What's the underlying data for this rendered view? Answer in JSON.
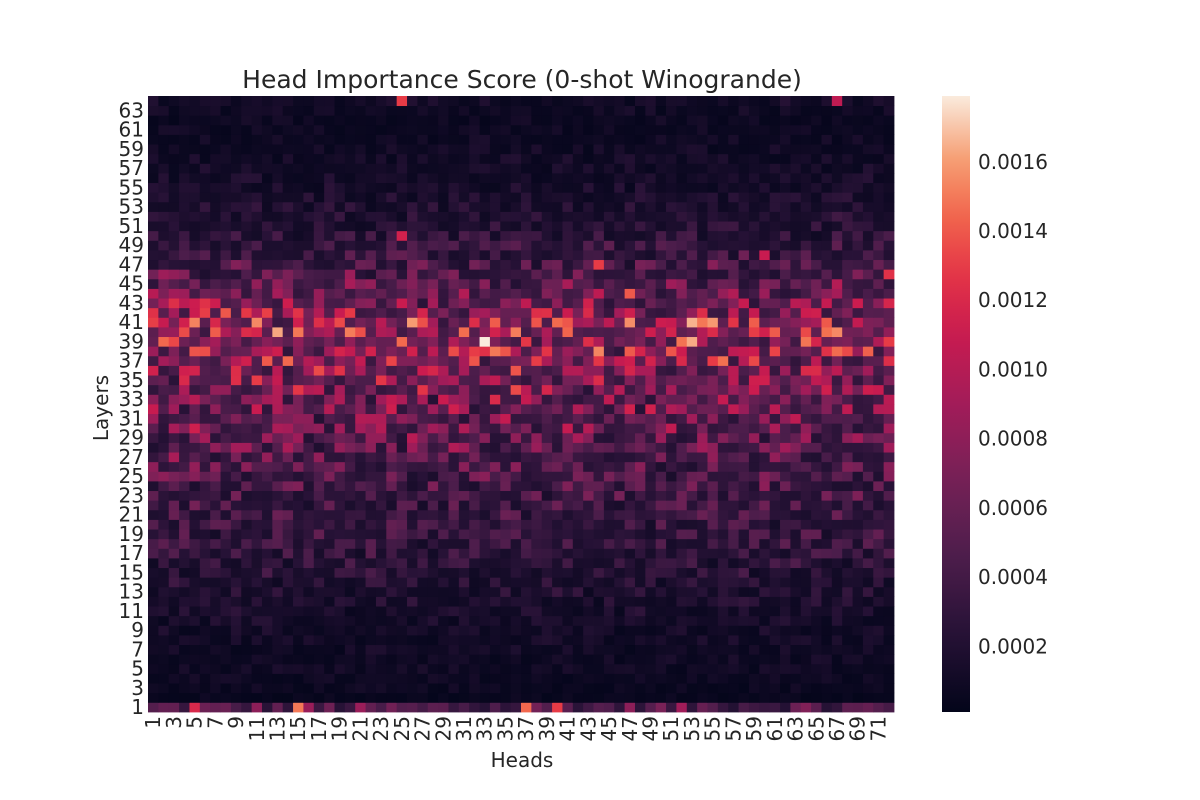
{
  "chart_data": {
    "type": "heatmap",
    "title": "Head Importance Score (0-shot Winogrande)",
    "xlabel": "Heads",
    "ylabel": "Layers",
    "n_heads": 72,
    "n_layers": 64,
    "x_tick_labels": [
      "1",
      "3",
      "5",
      "7",
      "9",
      "11",
      "13",
      "15",
      "17",
      "19",
      "21",
      "23",
      "25",
      "27",
      "29",
      "31",
      "33",
      "35",
      "37",
      "39",
      "41",
      "43",
      "45",
      "47",
      "49",
      "51",
      "53",
      "55",
      "57",
      "59",
      "61",
      "63",
      "65",
      "67",
      "69",
      "71"
    ],
    "y_tick_labels": [
      "1",
      "3",
      "5",
      "7",
      "9",
      "11",
      "13",
      "15",
      "17",
      "19",
      "21",
      "23",
      "25",
      "27",
      "29",
      "31",
      "33",
      "35",
      "37",
      "39",
      "41",
      "43",
      "45",
      "47",
      "49",
      "51",
      "53",
      "55",
      "57",
      "59",
      "61",
      "63"
    ],
    "colorbar": {
      "colormap": "rocket",
      "vmin": 1e-05,
      "vmax": 0.00179,
      "ticks": [
        0.0002,
        0.0004,
        0.0006,
        0.0008,
        0.001,
        0.0012,
        0.0014,
        0.0016
      ],
      "tick_labels": [
        "0.0002",
        "0.0004",
        "0.0006",
        "0.0008",
        "0.0010",
        "0.0012",
        "0.0014",
        "0.0016"
      ]
    },
    "value_scale": 1e-05,
    "layer_means_scaled": [
      50,
      5,
      7,
      8,
      9,
      10,
      10,
      11,
      12,
      13,
      15,
      17,
      19,
      21,
      24,
      26,
      28,
      30,
      32,
      34,
      36,
      38,
      40,
      42,
      44,
      47,
      50,
      53,
      56,
      59,
      62,
      64,
      66,
      68,
      72,
      76,
      80,
      84,
      90,
      92,
      88,
      80,
      70,
      62,
      54,
      48,
      42,
      36,
      32,
      26,
      22,
      20,
      18,
      16,
      14,
      13,
      12,
      11,
      10,
      9,
      8,
      8,
      9,
      12
    ],
    "notable_cells_scaled": [
      {
        "layer": 39,
        "head": 33,
        "value": 179
      },
      {
        "layer": 38,
        "head": 34,
        "value": 150
      },
      {
        "layer": 37,
        "head": 14,
        "value": 145
      },
      {
        "layer": 37,
        "head": 12,
        "value": 140
      },
      {
        "layer": 64,
        "head": 25,
        "value": 130
      },
      {
        "layer": 64,
        "head": 67,
        "value": 105
      },
      {
        "layer": 47,
        "head": 44,
        "value": 130
      },
      {
        "layer": 44,
        "head": 47,
        "value": 140
      },
      {
        "layer": 41,
        "head": 66,
        "value": 140
      },
      {
        "layer": 36,
        "head": 17,
        "value": 135
      },
      {
        "layer": 36,
        "head": 19,
        "value": 125
      },
      {
        "layer": 34,
        "head": 36,
        "value": 135
      },
      {
        "layer": 39,
        "head": 72,
        "value": 130
      },
      {
        "layer": 46,
        "head": 72,
        "value": 125
      },
      {
        "layer": 1,
        "head": 15,
        "value": 150
      },
      {
        "layer": 1,
        "head": 37,
        "value": 145
      },
      {
        "layer": 1,
        "head": 40,
        "value": 130
      },
      {
        "layer": 1,
        "head": 5,
        "value": 120
      },
      {
        "layer": 50,
        "head": 25,
        "value": 115
      },
      {
        "layer": 48,
        "head": 60,
        "value": 110
      },
      {
        "layer": 32,
        "head": 47,
        "value": 115
      },
      {
        "layer": 38,
        "head": 66,
        "value": 125
      }
    ],
    "grid": false,
    "legend": "colorbar-right"
  }
}
